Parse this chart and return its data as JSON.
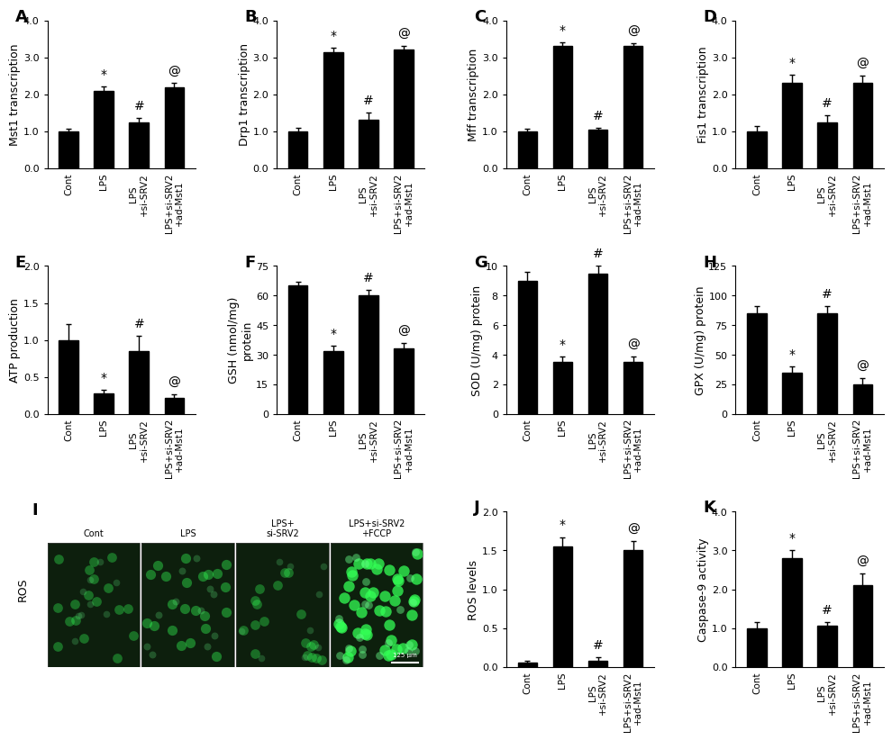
{
  "panel_A": {
    "label": "A",
    "ylabel": "Mst1 transcription",
    "categories": [
      "Cont",
      "LPS",
      "LPS\n+si-SRV2",
      "LPS+si-SRV2\n+ad-Mst1"
    ],
    "values": [
      1.0,
      2.1,
      1.25,
      2.2
    ],
    "errors": [
      0.06,
      0.12,
      0.1,
      0.1
    ],
    "ylim": [
      0,
      4.0
    ],
    "yticks": [
      0.0,
      1.0,
      2.0,
      3.0,
      4.0
    ],
    "sig": [
      "",
      "*",
      "#",
      "@"
    ]
  },
  "panel_B": {
    "label": "B",
    "ylabel": "Drp1 transcription",
    "categories": [
      "Cont",
      "LPS",
      "LPS\n+si-SRV2",
      "LPS+si-SRV2\n+ad-Mst1"
    ],
    "values": [
      1.0,
      3.15,
      1.3,
      3.2
    ],
    "errors": [
      0.1,
      0.12,
      0.2,
      0.1
    ],
    "ylim": [
      0,
      4.0
    ],
    "yticks": [
      0.0,
      1.0,
      2.0,
      3.0,
      4.0
    ],
    "sig": [
      "",
      "*",
      "#",
      "@"
    ]
  },
  "panel_C": {
    "label": "C",
    "ylabel": "Mff transcription",
    "categories": [
      "Cont",
      "LPS",
      "LPS\n+si-SRV2",
      "LPS+si-SRV2\n+ad-Mst1"
    ],
    "values": [
      1.0,
      3.3,
      1.05,
      3.3
    ],
    "errors": [
      0.07,
      0.1,
      0.05,
      0.08
    ],
    "ylim": [
      0,
      4.0
    ],
    "yticks": [
      0.0,
      1.0,
      2.0,
      3.0,
      4.0
    ],
    "sig": [
      "",
      "*",
      "#",
      "@"
    ]
  },
  "panel_D": {
    "label": "D",
    "ylabel": "Fis1 transcription",
    "categories": [
      "Cont",
      "LPS",
      "LPS\n+si-SRV2",
      "LPS+si-SRV2\n+ad-Mst1"
    ],
    "values": [
      1.0,
      2.3,
      1.25,
      2.3
    ],
    "errors": [
      0.15,
      0.22,
      0.18,
      0.2
    ],
    "ylim": [
      0,
      4.0
    ],
    "yticks": [
      0.0,
      1.0,
      2.0,
      3.0,
      4.0
    ],
    "sig": [
      "",
      "*",
      "#",
      "@"
    ]
  },
  "panel_E": {
    "label": "E",
    "ylabel": "ATP production",
    "categories": [
      "Cont",
      "LPS",
      "LPS\n+si-SRV2",
      "LPS+si-SRV2\n+ad-Mst1"
    ],
    "values": [
      1.0,
      0.28,
      0.85,
      0.22
    ],
    "errors": [
      0.22,
      0.05,
      0.2,
      0.05
    ],
    "ylim": [
      0,
      2.0
    ],
    "yticks": [
      0.0,
      0.5,
      1.0,
      1.5,
      2.0
    ],
    "sig": [
      "",
      "*",
      "#",
      "@"
    ]
  },
  "panel_F": {
    "label": "F",
    "ylabel": "GSH (nmol/mg)\nprotein",
    "categories": [
      "Cont",
      "LPS",
      "LPS\n+si-SRV2",
      "LPS+si-SRV2\n+ad-Mst1"
    ],
    "values": [
      65.0,
      32.0,
      60.0,
      33.0
    ],
    "errors": [
      2.0,
      2.5,
      3.0,
      3.0
    ],
    "ylim": [
      0,
      75
    ],
    "yticks": [
      0,
      15,
      30,
      45,
      60,
      75
    ],
    "sig": [
      "",
      "*",
      "#",
      "@"
    ]
  },
  "panel_G": {
    "label": "G",
    "ylabel": "SOD (U/mg) protein",
    "categories": [
      "Cont",
      "LPS",
      "LPS\n+si-SRV2",
      "LPS+si-SRV2\n+ad-Mst1"
    ],
    "values": [
      9.0,
      3.5,
      9.5,
      3.5
    ],
    "errors": [
      0.6,
      0.4,
      0.5,
      0.4
    ],
    "ylim": [
      0,
      10
    ],
    "yticks": [
      0,
      2,
      4,
      6,
      8,
      10
    ],
    "sig": [
      "",
      "*",
      "#",
      "@"
    ]
  },
  "panel_H": {
    "label": "H",
    "ylabel": "GPX (U/mg) protein",
    "categories": [
      "Cont",
      "LPS",
      "LPS\n+si-SRV2",
      "LPS+si-SRV2\n+ad-Mst1"
    ],
    "values": [
      85.0,
      35.0,
      85.0,
      25.0
    ],
    "errors": [
      6.0,
      5.0,
      6.0,
      5.0
    ],
    "ylim": [
      0,
      125
    ],
    "yticks": [
      0,
      25,
      50,
      75,
      100,
      125
    ],
    "sig": [
      "",
      "*",
      "#",
      "@"
    ]
  },
  "panel_J": {
    "label": "J",
    "ylabel": "ROS levels",
    "categories": [
      "Cont",
      "LPS",
      "LPS\n+si-SRV2",
      "LPS+si-SRV2\n+ad-Mst1"
    ],
    "values": [
      0.05,
      1.55,
      0.08,
      1.5
    ],
    "errors": [
      0.03,
      0.12,
      0.04,
      0.12
    ],
    "ylim": [
      0,
      2.0
    ],
    "yticks": [
      0.0,
      0.5,
      1.0,
      1.5,
      2.0
    ],
    "sig": [
      "",
      "*",
      "#",
      "@"
    ]
  },
  "panel_K": {
    "label": "K",
    "ylabel": "Caspase-9 activity",
    "categories": [
      "Cont",
      "LPS",
      "LPS\n+si-SRV2",
      "LPS+si-SRV2\n+ad-Mst1"
    ],
    "values": [
      1.0,
      2.8,
      1.05,
      2.1
    ],
    "errors": [
      0.15,
      0.2,
      0.1,
      0.3
    ],
    "ylim": [
      0,
      4.0
    ],
    "yticks": [
      0.0,
      1.0,
      2.0,
      3.0,
      4.0
    ],
    "sig": [
      "",
      "*",
      "#",
      "@"
    ]
  },
  "bar_color": "#000000",
  "bar_width": 0.55,
  "label_fontsize": 9,
  "tick_fontsize": 8,
  "panel_label_fontsize": 13,
  "sig_fontsize": 10,
  "xticklabel_fontsize": 7.5,
  "panel_I_labels": [
    "Cont",
    "LPS",
    "LPS+\nsi-SRV2",
    "LPS+si-SRV2\n+FCCP"
  ],
  "panel_I_label": "I",
  "ros_label": "ROS",
  "scale_bar_text": "125 μm"
}
